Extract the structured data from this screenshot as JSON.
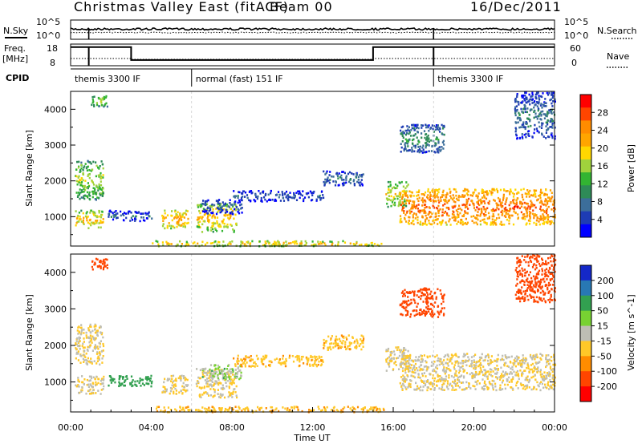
{
  "header": {
    "title": "Christmas Valley East (fitACF)",
    "beam": "Beam 00",
    "date": "16/Dec/2011"
  },
  "sky_panel": {
    "left_label": "N.Sky",
    "left_ticks": [
      "10^5",
      "10^0"
    ],
    "right_ticks": [
      "10^5",
      "10^0"
    ],
    "right_label": "N.Search"
  },
  "freq_panel": {
    "left_label_1": "Freq.",
    "left_label_2": "[MHz]",
    "left_ticks": [
      "18",
      "8"
    ],
    "right_ticks": [
      "60",
      "0"
    ],
    "right_label": "Nave"
  },
  "cpid": {
    "label": "CPID",
    "segments": [
      {
        "label": "themis 3300 IF",
        "start": 0.0,
        "end": 6.0
      },
      {
        "label": "normal (fast) 151 IF",
        "start": 6.0,
        "end": 18.0
      },
      {
        "label": "themis 3300 IF",
        "start": 18.0,
        "end": 24.0
      }
    ]
  },
  "power_colorbar": {
    "label": "Power [dB]",
    "ticks": [
      "28",
      "24",
      "20",
      "16",
      "12",
      "8",
      "4"
    ],
    "colors": [
      "#ff0000",
      "#ff4500",
      "#ff8c00",
      "#ffa500",
      "#ffd700",
      "#a0d23c",
      "#32b432",
      "#2e8b57",
      "#3c6e9a",
      "#1e3cb4",
      "#0000ff"
    ]
  },
  "velocity_colorbar": {
    "label": "Velocity [m s^-1]",
    "ticks": [
      "200",
      "100",
      "50",
      "15",
      "-15",
      "-50",
      "-100",
      "-200"
    ],
    "colors": [
      "#1428c8",
      "#2878b4",
      "#32a050",
      "#78d232",
      "#bebeb4",
      "#ffc828",
      "#ff8c00",
      "#ff4500",
      "#ff0000"
    ]
  },
  "chart_data": {
    "type": "heatmap",
    "panels": [
      "Power",
      "Velocity"
    ],
    "xlabel": "Time UT",
    "ylabel": "Slant Range [km]",
    "xlim": [
      0,
      24
    ],
    "ylim": [
      180,
      4500
    ],
    "x_ticks": [
      "00:00",
      "04:00",
      "08:00",
      "12:00",
      "16:00",
      "20:00",
      "00:00"
    ],
    "y_ticks": [
      "1000",
      "2000",
      "3000",
      "4000"
    ],
    "frequency_mhz_segments": [
      {
        "start": 0.0,
        "end": 3.0,
        "value": 17
      },
      {
        "start": 3.0,
        "end": 15.0,
        "value": 11
      },
      {
        "start": 15.0,
        "end": 24.0,
        "value": 17
      }
    ],
    "echo_regions": [
      {
        "t0": 0.2,
        "t1": 1.6,
        "r0": 700,
        "r1": 1200,
        "power_db": 20,
        "velocity": -15
      },
      {
        "t0": 0.2,
        "t1": 1.6,
        "r0": 1500,
        "r1": 2600,
        "power_db": 16,
        "velocity": -15
      },
      {
        "t0": 1.0,
        "t1": 1.8,
        "r0": 4100,
        "r1": 4400,
        "power_db": 16,
        "velocity": -150
      },
      {
        "t0": 1.8,
        "t1": 4.0,
        "r0": 900,
        "r1": 1200,
        "power_db": 6,
        "velocity": 50
      },
      {
        "t0": 4.5,
        "t1": 5.8,
        "r0": 700,
        "r1": 1200,
        "power_db": 22,
        "velocity": -15
      },
      {
        "t0": 6.2,
        "t1": 8.2,
        "r0": 600,
        "r1": 1400,
        "power_db": 20,
        "velocity": -15
      },
      {
        "t0": 6.5,
        "t1": 8.5,
        "r0": 1100,
        "r1": 1500,
        "power_db": 6,
        "velocity": 15
      },
      {
        "t0": 8.0,
        "t1": 12.5,
        "r0": 1450,
        "r1": 1750,
        "power_db": 6,
        "velocity": -40
      },
      {
        "t0": 12.5,
        "t1": 14.5,
        "r0": 1900,
        "r1": 2300,
        "power_db": 8,
        "velocity": -40
      },
      {
        "t0": 4.0,
        "t1": 15.5,
        "r0": 200,
        "r1": 350,
        "power_db": 20,
        "velocity": -40
      },
      {
        "t0": 15.6,
        "t1": 16.8,
        "r0": 1300,
        "r1": 2000,
        "power_db": 18,
        "velocity": -15
      },
      {
        "t0": 16.3,
        "t1": 24.0,
        "r0": 800,
        "r1": 1800,
        "power_db": 26,
        "velocity": -15
      },
      {
        "t0": 16.3,
        "t1": 18.5,
        "r0": 2800,
        "r1": 3600,
        "power_db": 10,
        "velocity": -150
      },
      {
        "t0": 22.0,
        "t1": 24.0,
        "r0": 3200,
        "r1": 4500,
        "power_db": 8,
        "velocity": -150
      }
    ]
  }
}
